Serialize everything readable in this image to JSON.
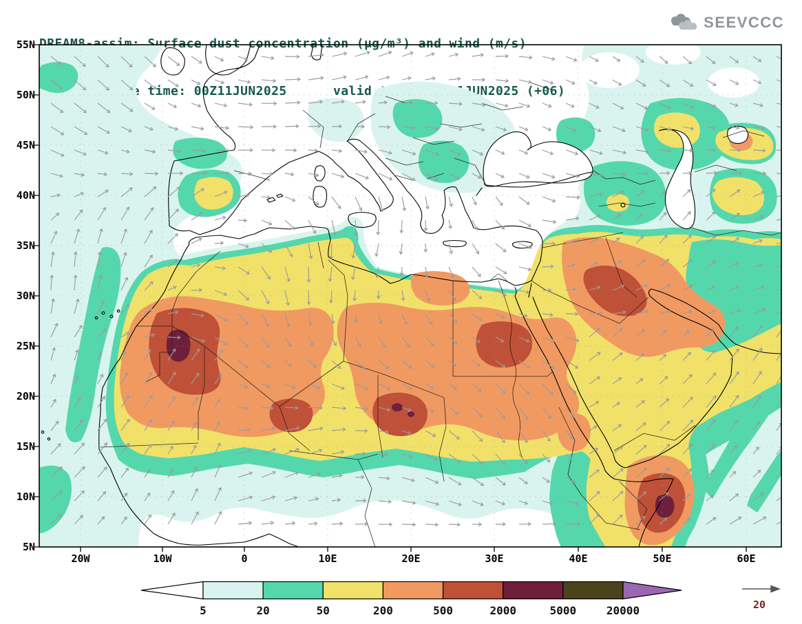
{
  "header": {
    "line1": "DREAM8-assim: Surface dust concentration (μg/m³) and wind (m/s)",
    "line2": "Forecast base time: 00Z11JUN2025      valid time: 06Z11JUN2025 (+06)"
  },
  "logo": {
    "text": "SEEVCCC"
  },
  "axes": {
    "lat": [
      "55N",
      "50N",
      "45N",
      "40N",
      "35N",
      "30N",
      "25N",
      "20N",
      "15N",
      "10N",
      "5N"
    ],
    "lon": [
      "20W",
      "10W",
      "0",
      "10E",
      "20E",
      "30E",
      "40E",
      "50E",
      "60E"
    ]
  },
  "colorbar": {
    "tick_labels": [
      "5",
      "20",
      "50",
      "200",
      "500",
      "2000",
      "5000",
      "20000"
    ],
    "segment_colors": [
      "#ffffff",
      "#d9f4ee",
      "#55d7ac",
      "#f1e169",
      "#f09a62",
      "#bf5138",
      "#6e1f3b",
      "#4c431d"
    ],
    "right_arrow_color": "#9a67b5"
  },
  "wind_reference": {
    "value": "20"
  },
  "palette": {
    "title_color": "#15594b",
    "level_5": "#d9f4ee",
    "level_20": "#55d7ac",
    "level_50": "#f1e169",
    "level_200": "#f09a62",
    "level_500": "#bf5138",
    "level_2000": "#6e1f3b",
    "coastline": "#000000",
    "wind_arrows": "#9b9b9b"
  },
  "chart_data": {
    "type": "heatmap",
    "title": "DREAM8-assim: Surface dust concentration (μg/m³) and wind (m/s)",
    "subtitle": "Forecast base time: 00Z11JUN2025  valid time: 06Z11JUN2025 (+06)",
    "units": "μg/m³",
    "wind_units": "m/s",
    "contour_levels": [
      5,
      20,
      50,
      200,
      500,
      2000,
      5000,
      20000
    ],
    "wind_reference_vector": 20,
    "lat_range": [
      "5N",
      "55N"
    ],
    "lon_range": [
      "20W",
      "60E"
    ],
    "legend_position": "bottom"
  }
}
